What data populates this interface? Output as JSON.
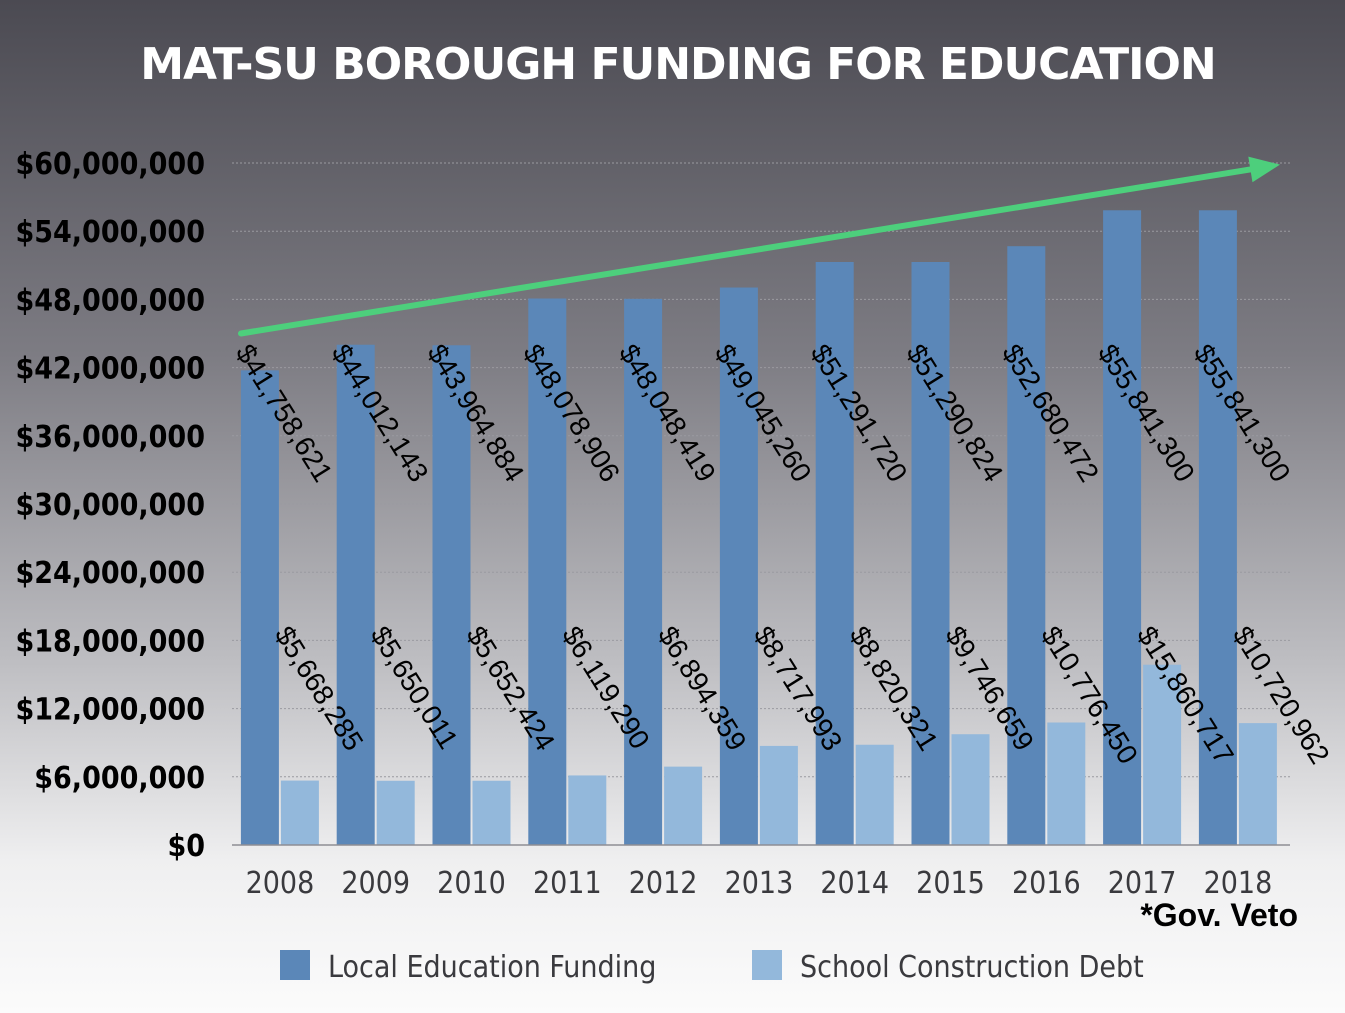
{
  "chart_data": {
    "type": "bar",
    "title": "MAT-SU BOROUGH FUNDING FOR EDUCATION",
    "categories": [
      "2008",
      "2009",
      "2010",
      "2011",
      "2012",
      "2013",
      "2014",
      "2015",
      "2016",
      "2017",
      "2018"
    ],
    "series": [
      {
        "name": "Local Education Funding",
        "color": "#5b87b8",
        "values": [
          41758621,
          44012143,
          43964884,
          48078906,
          48048419,
          49045260,
          51291720,
          51290824,
          52680472,
          55841300,
          55841300
        ],
        "labels": [
          "$41,758,621",
          "$44,012,143",
          "$43,964,884",
          "$48,078,906",
          "$48,048,419",
          "$49,045,260",
          "$51,291,720",
          "$51,290,824",
          "$52,680,472",
          "$55,841,300",
          "$55,841,300"
        ]
      },
      {
        "name": "School Construction Debt",
        "color": "#93b8db",
        "values": [
          5668285,
          5650011,
          5652424,
          6119290,
          6894359,
          8717993,
          8820321,
          9746659,
          10776450,
          15860717,
          10720962
        ],
        "labels": [
          "$5,668,285",
          "$5,650,011",
          "$5,652,424",
          "$6,119,290",
          "$6,894,359",
          "$8,717,993",
          "$8,820,321",
          "$9,746,659",
          "$10,776,450",
          "$15,860,717",
          "$10,720,962"
        ]
      }
    ],
    "yticks": [
      "$0",
      "$6,000,000",
      "$12,000,000",
      "$18,000,000",
      "$24,000,000",
      "$30,000,000",
      "$36,000,000",
      "$42,000,000",
      "$48,000,000",
      "$54,000,000",
      "$60,000,000"
    ],
    "ylim": [
      0,
      60000000
    ],
    "grid": true,
    "legend_position": "bottom",
    "trend_arrow": {
      "from_value": 45000000,
      "to_value": 59500000,
      "color": "#4dcf7c"
    },
    "annotation": "*Gov. Veto"
  }
}
